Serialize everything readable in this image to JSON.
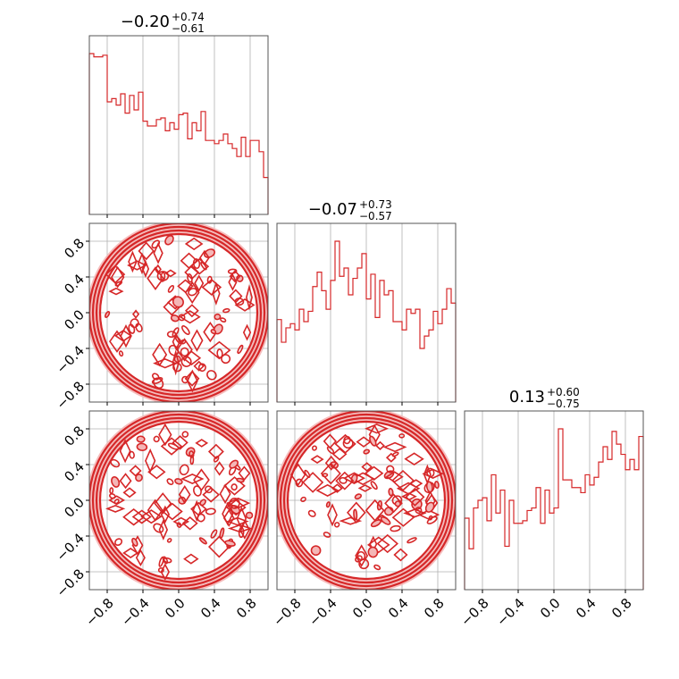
{
  "chart_data": {
    "type": "corner",
    "parameter_count": 3,
    "range": [
      -1.0,
      1.0
    ],
    "ticks": [
      -0.8,
      -0.4,
      0.0,
      0.4,
      0.8
    ],
    "tick_labels": [
      "−0.8",
      "−0.4",
      "0.0",
      "0.4",
      "0.8"
    ],
    "grid": true,
    "colors": {
      "line": "#d62728",
      "fill": "#f4b6b6",
      "axis": "#555555",
      "grid": "#b0b0b0"
    },
    "titles": [
      {
        "median": "−0.20",
        "plus": "+0.74",
        "minus": "−0.61"
      },
      {
        "median": "−0.07",
        "plus": "+0.73",
        "minus": "−0.57"
      },
      {
        "median": "0.13",
        "plus": "+0.60",
        "minus": "−0.75"
      }
    ],
    "histograms": [
      {
        "name": "",
        "bins": 40,
        "values": [
          10.0,
          9.8,
          9.8,
          9.9,
          7.0,
          7.2,
          6.8,
          7.5,
          6.3,
          7.4,
          6.5,
          7.6,
          5.8,
          5.5,
          5.5,
          5.9,
          6.0,
          5.2,
          5.7,
          5.3,
          6.2,
          6.3,
          4.7,
          5.7,
          5.2,
          6.4,
          4.6,
          4.6,
          4.4,
          4.6,
          5.0,
          4.4,
          4.1,
          3.6,
          4.8,
          3.6,
          4.6,
          4.6,
          3.9,
          2.3
        ]
      },
      {
        "name": "",
        "bins": 40,
        "values": [
          4.0,
          2.9,
          3.6,
          3.8,
          3.5,
          4.5,
          3.9,
          4.4,
          5.6,
          6.3,
          5.4,
          4.5,
          5.9,
          7.8,
          6.1,
          6.5,
          5.2,
          6.0,
          6.5,
          7.2,
          5.0,
          6.2,
          4.1,
          5.9,
          5.2,
          5.4,
          3.9,
          3.9,
          3.5,
          4.5,
          4.3,
          4.5,
          2.6,
          3.2,
          3.5,
          4.4,
          3.8,
          4.5,
          5.5,
          4.8
        ]
      },
      {
        "name": "",
        "bins": 40,
        "values": [
          2.8,
          1.6,
          3.2,
          3.5,
          3.6,
          2.7,
          4.5,
          3.0,
          3.9,
          1.7,
          3.5,
          2.6,
          2.6,
          2.7,
          3.1,
          3.2,
          4.0,
          2.6,
          3.9,
          3.0,
          3.2,
          6.3,
          4.3,
          4.3,
          4.0,
          4.0,
          3.8,
          4.5,
          4.1,
          4.4,
          5.0,
          5.6,
          5.1,
          6.2,
          5.7,
          5.3,
          4.7,
          5.1,
          4.7,
          6.0
        ]
      }
    ],
    "contour_pairs": [
      {
        "x_param": 0,
        "y_param": 1,
        "shape": "disk",
        "radius": 1.0
      },
      {
        "x_param": 0,
        "y_param": 2,
        "shape": "disk",
        "radius": 1.0
      },
      {
        "x_param": 1,
        "y_param": 2,
        "shape": "disk",
        "radius": 1.0
      }
    ]
  }
}
